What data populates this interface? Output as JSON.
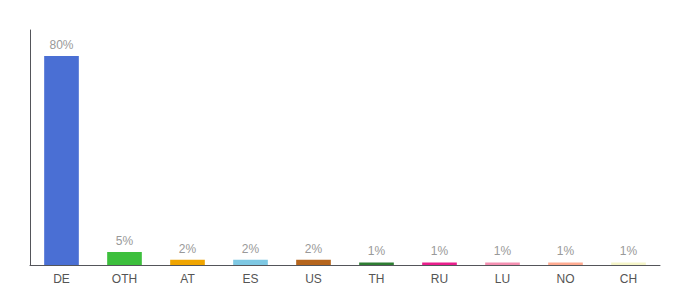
{
  "chart_data": {
    "type": "bar",
    "categories": [
      "DE",
      "OTH",
      "AT",
      "ES",
      "US",
      "TH",
      "RU",
      "LU",
      "NO",
      "CH"
    ],
    "values": [
      80,
      5,
      2,
      2,
      2,
      1,
      1,
      1,
      1,
      1
    ],
    "value_labels": [
      "80%",
      "5%",
      "2%",
      "2%",
      "2%",
      "1%",
      "1%",
      "1%",
      "1%",
      "1%"
    ],
    "colors": [
      "#4A6FD4",
      "#3DBF3D",
      "#F0A500",
      "#7EC8E3",
      "#B5651D",
      "#2E7D32",
      "#E91E8C",
      "#F48FB1",
      "#FFAB91",
      "#F5F5C8"
    ],
    "data_labels": true,
    "ylim": [
      0,
      90
    ],
    "grid": false,
    "tick_labels": "x"
  }
}
